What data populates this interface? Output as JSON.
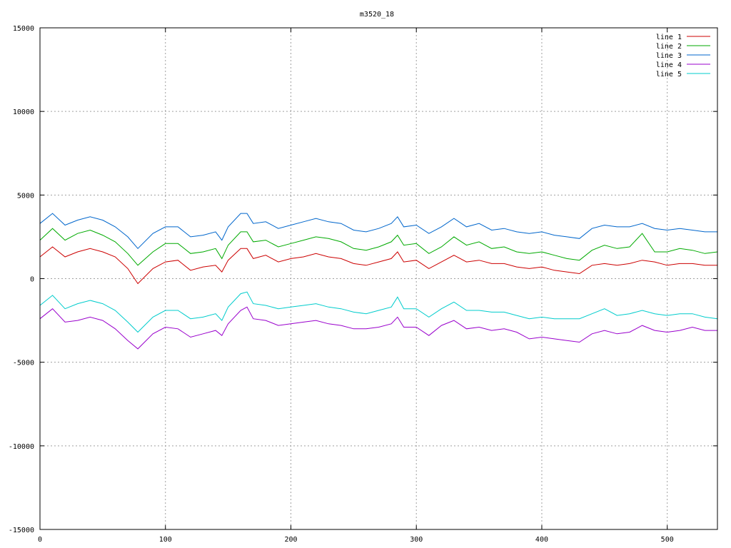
{
  "chart_data": {
    "type": "line",
    "title": "m3520_18",
    "xlabel": "",
    "ylabel": "",
    "xlim": [
      0,
      540
    ],
    "ylim": [
      -15000,
      15000
    ],
    "x_ticks": [
      0,
      100,
      200,
      300,
      400,
      500
    ],
    "y_ticks": [
      -15000,
      -10000,
      -5000,
      0,
      5000,
      10000,
      15000
    ],
    "grid": true,
    "legend_position": "top-right",
    "x": [
      0,
      10,
      20,
      30,
      40,
      50,
      60,
      70,
      78,
      90,
      100,
      110,
      120,
      130,
      140,
      145,
      150,
      160,
      165,
      170,
      180,
      190,
      200,
      210,
      220,
      230,
      240,
      250,
      260,
      270,
      280,
      285,
      290,
      300,
      310,
      320,
      330,
      340,
      350,
      360,
      370,
      380,
      390,
      400,
      410,
      420,
      430,
      440,
      450,
      460,
      470,
      480,
      490,
      500,
      510,
      520,
      530,
      540
    ],
    "series": [
      {
        "name": "line 1",
        "color": "#cc0000",
        "values": [
          1300,
          1900,
          1300,
          1600,
          1800,
          1600,
          1300,
          600,
          -300,
          600,
          1000,
          1100,
          500,
          700,
          800,
          400,
          1100,
          1800,
          1800,
          1200,
          1400,
          1000,
          1200,
          1300,
          1500,
          1300,
          1200,
          900,
          800,
          1000,
          1200,
          1600,
          1000,
          1100,
          600,
          1000,
          1400,
          1000,
          1100,
          900,
          900,
          700,
          600,
          700,
          500,
          400,
          300,
          800,
          900,
          800,
          900,
          1100,
          1000,
          800,
          900,
          900,
          800,
          800
        ]
      },
      {
        "name": "line 2",
        "color": "#00aa00",
        "values": [
          2300,
          3000,
          2300,
          2700,
          2900,
          2600,
          2200,
          1500,
          800,
          1600,
          2100,
          2100,
          1500,
          1600,
          1800,
          1200,
          2000,
          2800,
          2800,
          2200,
          2300,
          1900,
          2100,
          2300,
          2500,
          2400,
          2200,
          1800,
          1700,
          1900,
          2200,
          2600,
          2000,
          2100,
          1500,
          1900,
          2500,
          2000,
          2200,
          1800,
          1900,
          1600,
          1500,
          1600,
          1400,
          1200,
          1100,
          1700,
          2000,
          1800,
          1900,
          2700,
          1600,
          1600,
          1800,
          1700,
          1500,
          1600
        ]
      },
      {
        "name": "line 3",
        "color": "#0066cc",
        "values": [
          3300,
          3900,
          3200,
          3500,
          3700,
          3500,
          3100,
          2500,
          1800,
          2700,
          3100,
          3100,
          2500,
          2600,
          2800,
          2300,
          3100,
          3900,
          3900,
          3300,
          3400,
          3000,
          3200,
          3400,
          3600,
          3400,
          3300,
          2900,
          2800,
          3000,
          3300,
          3700,
          3100,
          3200,
          2700,
          3100,
          3600,
          3100,
          3300,
          2900,
          3000,
          2800,
          2700,
          2800,
          2600,
          2500,
          2400,
          3000,
          3200,
          3100,
          3100,
          3300,
          3000,
          2900,
          3000,
          2900,
          2800,
          2800
        ]
      },
      {
        "name": "line 4",
        "color": "#9900cc",
        "values": [
          -2400,
          -1800,
          -2600,
          -2500,
          -2300,
          -2500,
          -3000,
          -3700,
          -4200,
          -3300,
          -2900,
          -3000,
          -3500,
          -3300,
          -3100,
          -3400,
          -2700,
          -1900,
          -1700,
          -2400,
          -2500,
          -2800,
          -2700,
          -2600,
          -2500,
          -2700,
          -2800,
          -3000,
          -3000,
          -2900,
          -2700,
          -2300,
          -2900,
          -2900,
          -3400,
          -2800,
          -2500,
          -3000,
          -2900,
          -3100,
          -3000,
          -3200,
          -3600,
          -3500,
          -3600,
          -3700,
          -3800,
          -3300,
          -3100,
          -3300,
          -3200,
          -2800,
          -3100,
          -3200,
          -3100,
          -2900,
          -3100,
          -3100
        ]
      },
      {
        "name": "line 5",
        "color": "#00cccc",
        "values": [
          -1600,
          -1000,
          -1800,
          -1500,
          -1300,
          -1500,
          -1900,
          -2600,
          -3200,
          -2300,
          -1900,
          -1900,
          -2400,
          -2300,
          -2100,
          -2500,
          -1700,
          -900,
          -800,
          -1500,
          -1600,
          -1800,
          -1700,
          -1600,
          -1500,
          -1700,
          -1800,
          -2000,
          -2100,
          -1900,
          -1700,
          -1100,
          -1800,
          -1800,
          -2300,
          -1800,
          -1400,
          -1900,
          -1900,
          -2000,
          -2000,
          -2200,
          -2400,
          -2300,
          -2400,
          -2400,
          -2400,
          -2100,
          -1800,
          -2200,
          -2100,
          -1900,
          -2100,
          -2200,
          -2100,
          -2100,
          -2300,
          -2400
        ]
      }
    ]
  }
}
